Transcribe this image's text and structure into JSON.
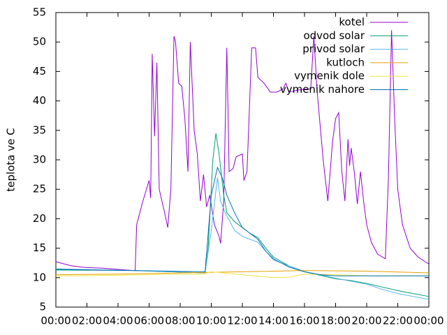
{
  "chart_data": {
    "type": "line",
    "ylabel": "teplota ve C",
    "xlim": [
      0,
      24
    ],
    "xticks": [
      {
        "value": 0,
        "label": "00:00"
      },
      {
        "value": 2,
        "label": "02:00"
      },
      {
        "value": 4,
        "label": "04:00"
      },
      {
        "value": 6,
        "label": "06:00"
      },
      {
        "value": 8,
        "label": "08:00"
      },
      {
        "value": 10,
        "label": "10:00"
      },
      {
        "value": 12,
        "label": "12:00"
      },
      {
        "value": 14,
        "label": "14:00"
      },
      {
        "value": 16,
        "label": "16:00"
      },
      {
        "value": 18,
        "label": "18:00"
      },
      {
        "value": 20,
        "label": "20:00"
      },
      {
        "value": 22,
        "label": "22:00"
      },
      {
        "value": 24,
        "label": "00:00"
      }
    ],
    "ylim": [
      5,
      55
    ],
    "yticks": [
      5,
      10,
      15,
      20,
      25,
      30,
      35,
      40,
      45,
      50,
      55
    ],
    "legend": "top-right",
    "series": [
      {
        "name": "kotel",
        "color": "#9400d3",
        "x": [
          0,
          1,
          2,
          3,
          4,
          5,
          5.1,
          5.2,
          5.6,
          6.0,
          6.1,
          6.2,
          6.35,
          6.5,
          6.65,
          7.0,
          7.2,
          7.4,
          7.6,
          7.7,
          7.9,
          8.1,
          8.3,
          8.5,
          8.65,
          8.9,
          9.1,
          9.3,
          9.5,
          9.7,
          9.9,
          10.2,
          10.5,
          10.6,
          10.8,
          11.0,
          11.15,
          11.4,
          11.6,
          12.0,
          12.1,
          12.3,
          12.6,
          12.85,
          13.0,
          13.4,
          13.8,
          14.2,
          14.6,
          14.8,
          15.0,
          15.5,
          16.0,
          16.4,
          16.6,
          16.8,
          17.0,
          17.2,
          17.5,
          17.8,
          18.0,
          18.2,
          18.4,
          18.6,
          18.8,
          18.9,
          19.0,
          19.2,
          19.4,
          19.6,
          19.8,
          20.0,
          20.3,
          20.7,
          21.2,
          21.4,
          21.6,
          21.8,
          22.0,
          22.3,
          22.8,
          23.3,
          24
        ],
        "values": [
          12.7,
          12,
          11.7,
          11.6,
          11.4,
          11.2,
          11.2,
          19,
          23,
          26.5,
          23.5,
          48,
          34,
          46.5,
          25,
          21,
          18.5,
          25,
          51,
          50,
          43,
          42.5,
          37,
          28,
          50,
          35,
          31,
          23,
          27.5,
          22,
          24,
          19,
          17,
          15.8,
          23,
          49,
          28,
          28.5,
          30.5,
          31,
          26.5,
          28,
          49,
          49,
          44,
          43,
          41.5,
          41.5,
          42,
          43,
          41.5,
          41.8,
          42,
          42,
          51,
          42,
          36,
          30,
          23,
          33,
          37,
          38,
          28,
          23,
          33.5,
          29,
          32,
          28,
          22.5,
          28,
          23,
          19,
          16,
          14,
          13.2,
          27,
          52,
          37,
          25,
          19,
          15,
          13.5,
          12.3
        ]
      },
      {
        "name": "odvod solar",
        "color": "#009e73",
        "x": [
          0,
          5,
          9.6,
          9.8,
          10.1,
          10.3,
          10.5,
          10.8,
          11.0,
          11.5,
          12,
          12.5,
          13,
          13.5,
          14,
          15,
          16,
          17,
          18,
          19,
          20,
          21,
          22,
          23,
          24
        ],
        "values": [
          11.3,
          11.2,
          10.8,
          15,
          30,
          34.5,
          31,
          24,
          21,
          19.5,
          18.5,
          17.5,
          16.8,
          15,
          13.5,
          12,
          11,
          10.4,
          9.8,
          9.5,
          9,
          8.4,
          7.8,
          7.3,
          6.8
        ]
      },
      {
        "name": "privod solar",
        "color": "#56b4e9",
        "x": [
          0,
          5,
          9.6,
          10,
          10.4,
          10.6,
          10.9,
          11.5,
          12,
          12.5,
          13,
          13.5,
          14,
          15,
          16,
          17,
          18,
          19,
          20,
          21,
          22,
          23,
          24
        ],
        "values": [
          11.5,
          11.2,
          10.8,
          18,
          27,
          23,
          21,
          18,
          17,
          16.5,
          16,
          14.5,
          13,
          12,
          11,
          10.5,
          9.9,
          9.4,
          8.9,
          8,
          7.3,
          6.8,
          6.3
        ]
      },
      {
        "name": "kutloch",
        "color": "#e69f00",
        "x": [
          0,
          4,
          8,
          12,
          16,
          20,
          24
        ],
        "values": [
          10.5,
          10.6,
          10.8,
          11,
          11.2,
          11.1,
          10.8
        ]
      },
      {
        "name": "vymenik dole",
        "color": "#f0e442",
        "x": [
          0,
          4,
          8,
          9.5,
          10,
          12,
          14,
          15,
          16,
          18,
          20,
          24
        ],
        "values": [
          10.3,
          10.4,
          10.6,
          10.6,
          11,
          10.5,
          10,
          10.1,
          10.6,
          10.5,
          10.3,
          10.3
        ]
      },
      {
        "name": "vymenik nahore",
        "color": "#0072b2",
        "x": [
          0,
          5,
          9.6,
          10,
          10.4,
          10.7,
          11,
          11.5,
          12,
          12.5,
          13,
          13.5,
          14,
          15,
          16,
          17,
          18,
          20,
          22,
          24
        ],
        "values": [
          11.4,
          11.2,
          11,
          24,
          28.7,
          27,
          24,
          21,
          18.5,
          17.5,
          16.5,
          14.5,
          13.2,
          11.8,
          11,
          10.5,
          10.3,
          10.3,
          10.3,
          10.3
        ]
      }
    ]
  }
}
